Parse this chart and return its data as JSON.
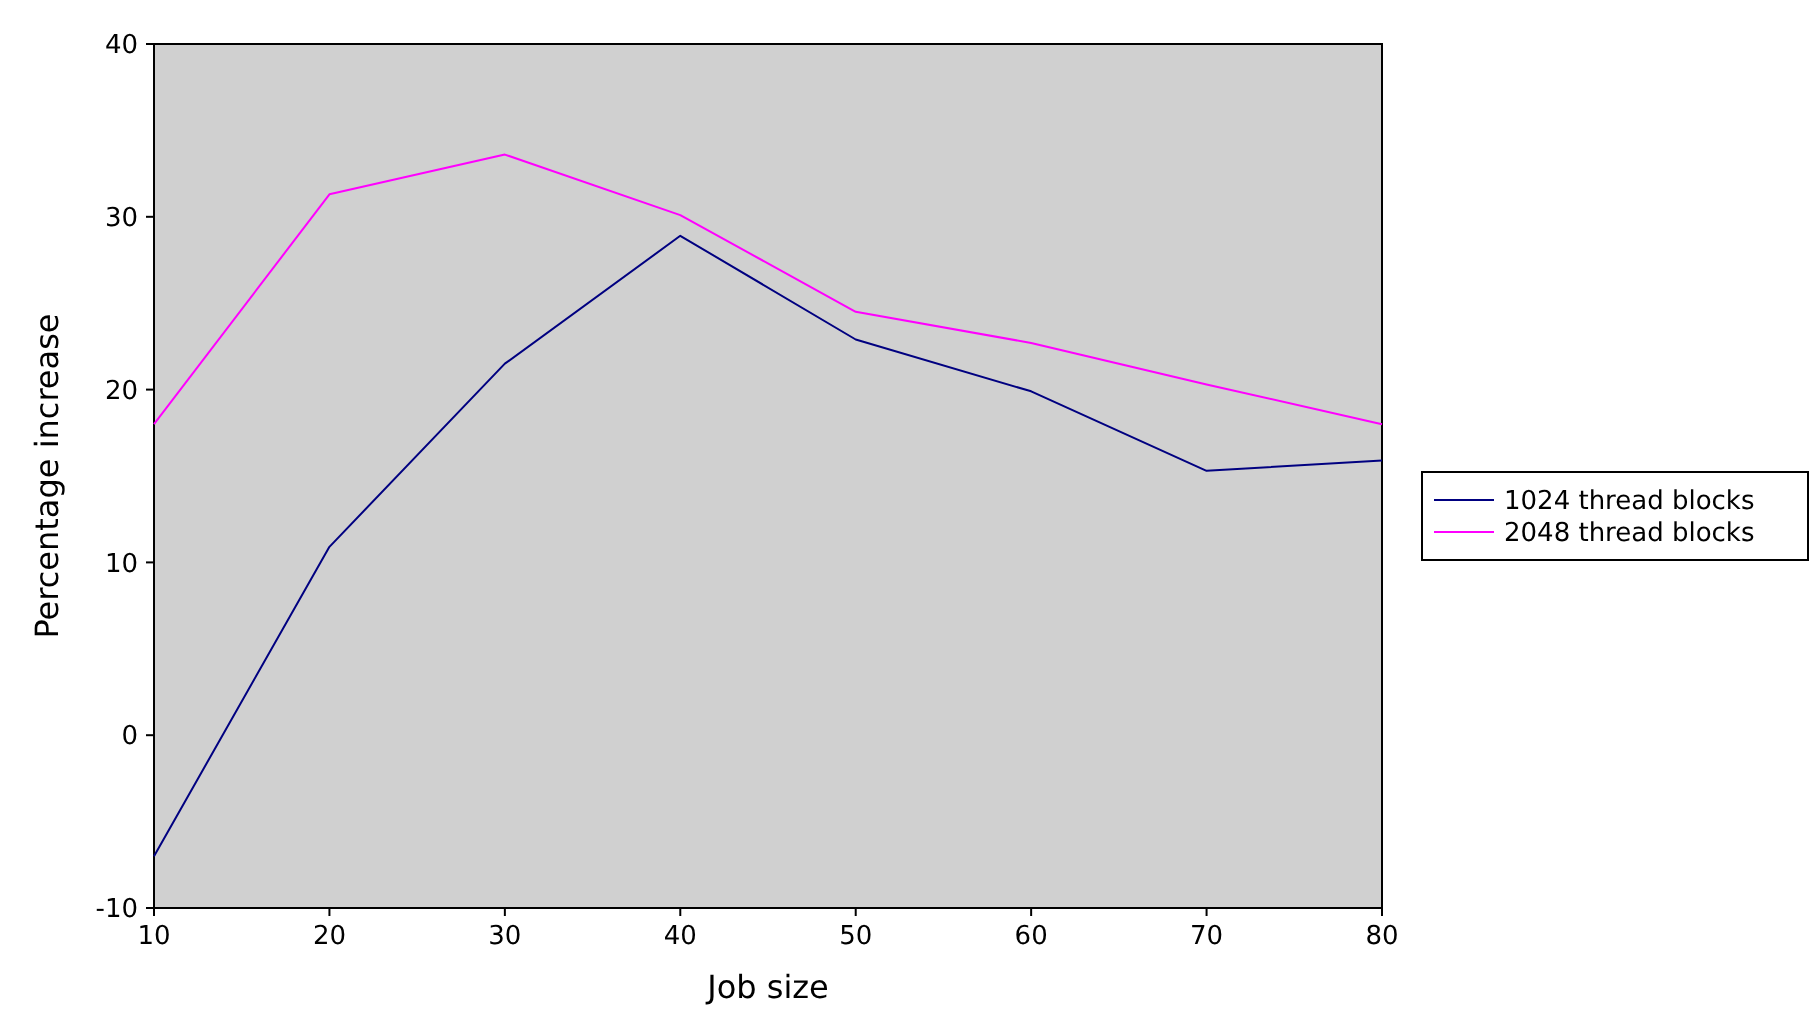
{
  "chart_data": {
    "type": "line",
    "xlabel": "Job size",
    "ylabel": "Percentage increase",
    "x": [
      10,
      20,
      30,
      40,
      50,
      60,
      70,
      80
    ],
    "series": [
      {
        "name": "1024 thread blocks",
        "color": "#000080",
        "values": [
          -7.0,
          10.9,
          21.5,
          28.9,
          22.9,
          19.9,
          15.3,
          15.9
        ]
      },
      {
        "name": "2048 thread blocks",
        "color": "#ff00ff",
        "values": [
          18.0,
          31.3,
          33.6,
          30.1,
          24.5,
          22.7,
          20.3,
          18.0
        ]
      }
    ],
    "xlim": [
      10,
      80
    ],
    "xticks": [
      10,
      20,
      30,
      40,
      50,
      60,
      70,
      80
    ],
    "ylim": [
      -10,
      40
    ],
    "yticks": [
      -10,
      0,
      10,
      20,
      30,
      40
    ],
    "grid": false,
    "legend": "right",
    "marker": "none",
    "line_style": "solid"
  }
}
